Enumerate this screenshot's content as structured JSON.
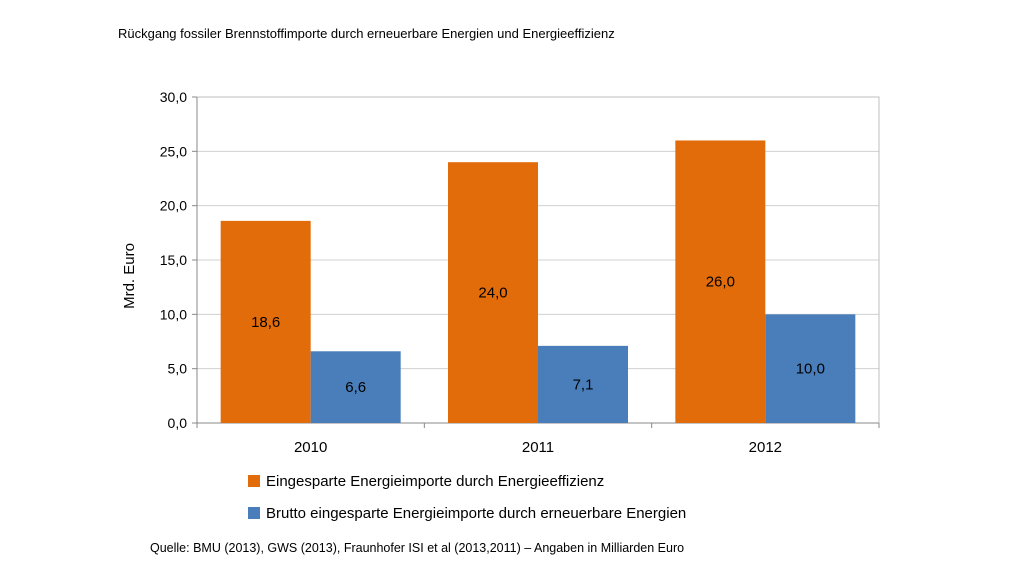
{
  "page_title": "Rückgang fossiler Brennstoffimporte durch erneuerbare Energien und Energieeffizienz",
  "source_note": "Quelle: BMU (2013), GWS (2013), Fraunhofer ISI et al (2013,2011)  – Angaben in Milliarden Euro",
  "chart_data": {
    "type": "bar",
    "title": "",
    "xlabel": "",
    "ylabel": "Mrd. Euro",
    "ylim": [
      0,
      30
    ],
    "yticks": [
      "0,0",
      "5,0",
      "10,0",
      "15,0",
      "20,0",
      "25,0",
      "30,0"
    ],
    "categories": [
      "2010",
      "2011",
      "2012"
    ],
    "series": [
      {
        "name": "Eingesparte Energieimporte durch Energieeffizienz",
        "color": "#e36c0a",
        "values": [
          18.6,
          24.0,
          26.0
        ],
        "labels": [
          "18,6",
          "24,0",
          "26,0"
        ]
      },
      {
        "name": "Brutto eingesparte Energieimporte durch erneuerbare Energien",
        "color": "#4a7ebb",
        "values": [
          6.6,
          7.1,
          10.0
        ],
        "labels": [
          "6,6",
          "7,1",
          "10,0"
        ]
      }
    ],
    "grid": true,
    "legend": "bottom"
  }
}
